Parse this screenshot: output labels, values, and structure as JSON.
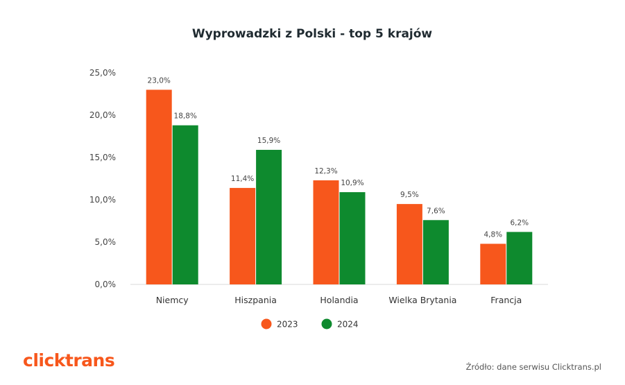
{
  "chart_data": {
    "type": "bar",
    "title": "Wyprowadzki z Polski - top 5 krajów",
    "categories": [
      "Niemcy",
      "Hiszpania",
      "Holandia",
      "Wielka Brytania",
      "Francja"
    ],
    "series": [
      {
        "name": "2023",
        "color": "#f7571c",
        "values": [
          23.0,
          11.4,
          12.3,
          9.5,
          4.8
        ],
        "labels": [
          "23,0%",
          "11,4%",
          "12,3%",
          "9,5%",
          "4,8%"
        ]
      },
      {
        "name": "2024",
        "color": "#0e8a2e",
        "values": [
          18.8,
          15.9,
          10.9,
          7.6,
          6.2
        ],
        "labels": [
          "18,8%",
          "15,9%",
          "10,9%",
          "7,6%",
          "6,2%"
        ]
      }
    ],
    "yticks": [
      0,
      5,
      10,
      15,
      20,
      25
    ],
    "ytick_labels": [
      "0,0%",
      "5,0%",
      "10,0%",
      "15,0%",
      "20,0%",
      "25,0%"
    ],
    "ylim": [
      0,
      25
    ],
    "grid": false,
    "legend_position": "bottom-center",
    "xlabel": "",
    "ylabel": ""
  },
  "footer": {
    "logo_text": "clicktrans",
    "logo_color": "#f7571c",
    "source_text": "Źródło: dane serwisu Clicktrans.pl"
  }
}
